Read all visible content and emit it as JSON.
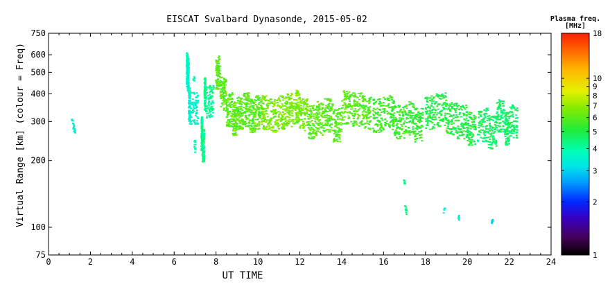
{
  "chart_data": {
    "type": "scatter",
    "title": "EISCAT Svalbard Dynasonde, 2015-05-02",
    "xlabel": "UT TIME",
    "ylabel": "Virtual Range [km] (colour = Freq)",
    "xlim": [
      0,
      24
    ],
    "ylim": [
      75,
      750
    ],
    "yscale": "log",
    "xticks": [
      0,
      2,
      4,
      6,
      8,
      10,
      12,
      14,
      16,
      18,
      20,
      22,
      24
    ],
    "yticks": [
      75,
      100,
      200,
      300,
      400,
      500,
      600,
      750
    ],
    "colorbar": {
      "title": "Plasma freq.",
      "unit": "[MHz]",
      "scale": "log",
      "range": [
        1,
        18
      ],
      "ticks": [
        1,
        2,
        3,
        4,
        5,
        6,
        7,
        8,
        9,
        10,
        18
      ]
    },
    "series": [
      {
        "x": [
          1.15,
          1.2,
          1.25
        ],
        "y": [
          300,
          285,
          275
        ],
        "freq": 3.4
      },
      {
        "x": [
          6.6,
          6.65,
          6.7,
          6.75
        ],
        "y": [
          515,
          490,
          360,
          345
        ],
        "freq": 3.6
      },
      {
        "x": [
          6.95,
          7.0,
          7.0
        ],
        "y": [
          470,
          240,
          225
        ],
        "freq": 3.8
      },
      {
        "x": [
          7.3,
          7.35,
          7.45,
          7.5
        ],
        "y": [
          265,
          235,
          400,
          370
        ],
        "freq": 4.2
      },
      {
        "x": [
          8.0,
          8.2,
          8.5,
          8.8,
          9.0,
          9.3,
          9.6,
          9.9
        ],
        "y": [
          500,
          400,
          340,
          310,
          330,
          340,
          320,
          330
        ],
        "freq": 6.0
      },
      {
        "x": [
          10.2,
          10.6,
          11.0,
          11.4,
          11.8,
          12.0
        ],
        "y": [
          330,
          320,
          330,
          340,
          350,
          320
        ],
        "freq": 6.5
      },
      {
        "x": [
          12.4,
          12.8,
          13.2,
          13.6,
          14.0,
          14.5,
          15.0
        ],
        "y": [
          300,
          310,
          320,
          290,
          350,
          340,
          330
        ],
        "freq": 6.0
      },
      {
        "x": [
          15.5,
          16.0,
          16.5,
          17.0,
          17.5
        ],
        "y": [
          320,
          330,
          300,
          310,
          290
        ],
        "freq": 5.5
      },
      {
        "x": [
          18.0,
          18.5,
          19.0,
          19.5,
          20.0
        ],
        "y": [
          330,
          340,
          310,
          300,
          280
        ],
        "freq": 5.0
      },
      {
        "x": [
          20.5,
          21.0,
          21.4,
          21.8,
          22.0
        ],
        "y": [
          290,
          270,
          320,
          280,
          300
        ],
        "freq": 4.6
      },
      {
        "x": [
          17.0,
          17.05,
          17.1
        ],
        "y": [
          160,
          122,
          118
        ],
        "freq": 4.3
      },
      {
        "x": [
          18.9
        ],
        "y": [
          120
        ],
        "freq": 3.5
      },
      {
        "x": [
          19.6
        ],
        "y": [
          111
        ],
        "freq": 3.4
      },
      {
        "x": [
          21.2
        ],
        "y": [
          107
        ],
        "freq": 3.0
      }
    ]
  }
}
